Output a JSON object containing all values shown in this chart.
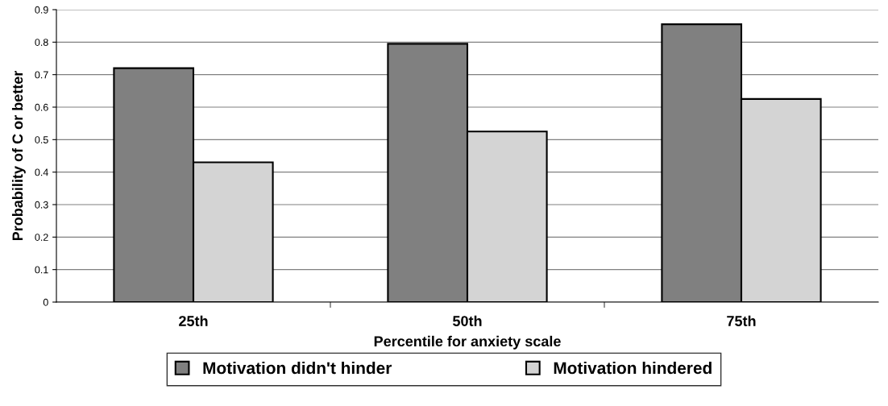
{
  "chart_data": {
    "type": "bar",
    "xlabel": "Percentile for anxiety scale",
    "ylabel": "Probability of C or better",
    "categories": [
      "25th",
      "50th",
      "75th"
    ],
    "series": [
      {
        "name": "Motivation didn't hinder",
        "color": "#808080",
        "values": [
          0.72,
          0.795,
          0.855
        ]
      },
      {
        "name": "Motivation hindered",
        "color": "#d4d4d4",
        "values": [
          0.43,
          0.525,
          0.625
        ]
      }
    ],
    "ylim": [
      0,
      0.9
    ],
    "yticks": [
      0,
      0.1,
      0.2,
      0.3,
      0.4,
      0.5,
      0.6,
      0.7,
      0.8,
      0.9
    ],
    "grid": "y",
    "legend": "bottom"
  }
}
